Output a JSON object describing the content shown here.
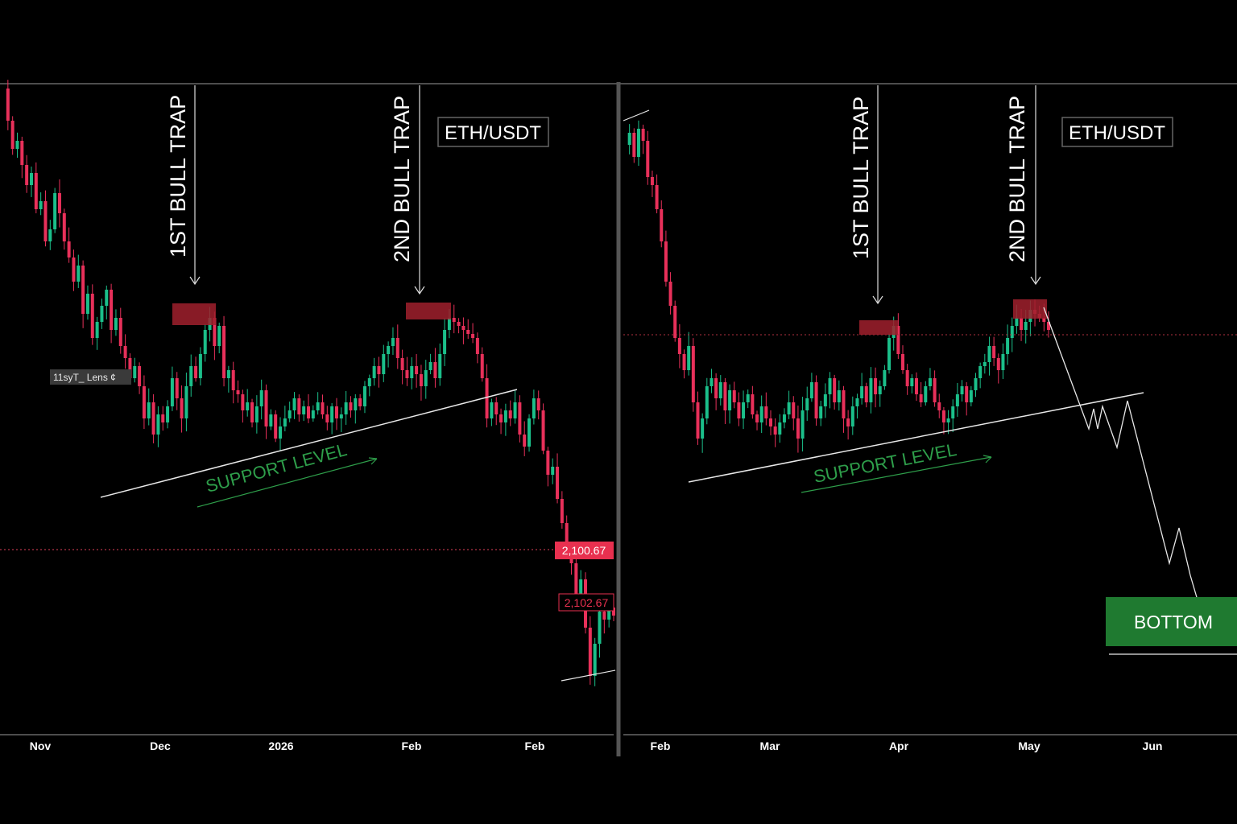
{
  "chart_data": [
    {
      "type": "candlestick",
      "symbol_label": "ETH/USDT",
      "x_ticks": [
        "Nov",
        "Dec",
        "2026",
        "Feb",
        "Feb"
      ],
      "annotations": {
        "trap1": "1ST BULL TRAP",
        "trap2": "2ND BULL TRAP",
        "support": "SUPPORT LEVEL",
        "legend_glitch": "11syT_ Lens ¢"
      },
      "price_tags": [
        "2,100.67",
        "2,102.67"
      ],
      "candles": [
        [
          1,
          [
            170,
            130,
            225,
            125,
            230
          ],
          [
            185,
            192,
            150,
            185,
            120
          ]
        ],
        [
          0,
          [
            200,
            240,
            230,
            260,
            300,
            290
          ],
          [
            215,
            190,
            200,
            235,
            250,
            270,
            320
          ]
        ],
        [
          1,
          [
            280,
            240,
            255,
            345,
            390,
            380
          ],
          [
            270,
            265,
            300,
            360,
            390,
            350,
            340
          ]
        ],
        [
          1,
          [
            350,
            330,
            360,
            380,
            420,
            410
          ],
          [
            340,
            335,
            360,
            390,
            400,
            430,
            440
          ]
        ],
        [
          0,
          [
            430,
            490,
            470,
            500,
            540,
            530
          ],
          [
            455,
            470,
            500,
            520,
            560,
            510,
            500
          ]
        ],
        [
          1,
          [
            520,
            500,
            475,
            490,
            465,
            470
          ],
          [
            505,
            490,
            475,
            470,
            455,
            480,
            490
          ]
        ],
        [
          0,
          [
            485,
            500,
            510,
            505,
            520,
            515
          ],
          [
            495,
            515,
            510,
            520,
            515,
            525,
            530
          ]
        ],
        [
          1,
          [
            510,
            520,
            505,
            515,
            500,
            490
          ],
          [
            505,
            515,
            510,
            500,
            480,
            470,
            440
          ]
        ],
        [
          1,
          [
            440,
            410,
            415,
            460,
            470,
            470
          ],
          [
            420,
            410,
            440,
            470,
            455,
            470,
            440
          ]
        ],
        [
          1,
          [
            440,
            460,
            475,
            470,
            520,
            485
          ],
          [
            450,
            470,
            520,
            500,
            520,
            510,
            495
          ]
        ],
        [
          0,
          [
            410,
            400,
            405,
            400,
            410,
            410
          ],
          [
            410,
            405,
            400,
            410,
            415,
            420,
            450
          ]
        ],
        [
          0,
          [
            450,
            510,
            520,
            515,
            525,
            520
          ],
          [
            520,
            525,
            520,
            560,
            550,
            520,
            525
          ]
        ],
        [
          0,
          [
            515,
            560,
            560,
            600,
            620,
            650
          ],
          [
            500,
            590,
            580,
            640,
            620,
            660,
            680
          ]
        ],
        [
          1,
          [
            670,
            700,
            700,
            700,
            710,
            740
          ],
          [
            700,
            760,
            780,
            800,
            810,
            830,
            835
          ]
        ],
        [
          1,
          [
            770,
            760,
            770,
            760,
            755,
            765
          ],
          [
            760,
            770,
            760,
            755,
            765,
            760,
            760
          ]
        ]
      ],
      "candles2": [
        [
          0,
          [
            180,
            170,
            200,
            160,
            180,
            230
          ],
          [
            175,
            165,
            190,
            215,
            240,
            255,
            280
          ]
        ],
        [
          0,
          [
            300,
            330,
            360,
            420,
            400,
            440
          ],
          [
            340,
            360,
            420,
            440,
            450,
            520,
            540
          ]
        ],
        [
          1,
          [
            520,
            510,
            480,
            490,
            470,
            480
          ],
          [
            500,
            500,
            480,
            490,
            495,
            485,
            520
          ]
        ],
        [
          0,
          [
            520,
            500,
            490,
            510,
            515,
            520
          ],
          [
            510,
            525,
            520,
            530,
            540,
            545,
            530
          ]
        ],
        [
          1,
          [
            530,
            510,
            500,
            495,
            490,
            500
          ],
          [
            505,
            515,
            500,
            520,
            525,
            510,
            500
          ]
        ],
        [
          1,
          [
            490,
            470,
            480,
            470,
            490,
            500
          ],
          [
            495,
            480,
            470,
            480,
            490,
            510,
            520
          ]
        ],
        [
          0,
          [
            520,
            490,
            470,
            480,
            490,
            500
          ],
          [
            480,
            470,
            500,
            490,
            505,
            520,
            525
          ]
        ],
        [
          1,
          [
            520,
            510,
            500,
            480,
            490,
            480
          ],
          [
            500,
            520,
            505,
            490,
            485,
            470,
            440
          ]
        ],
        [
          1,
          [
            410,
            420,
            430,
            440,
            460,
            470
          ],
          [
            420,
            440,
            460,
            470,
            460,
            490,
            500
          ]
        ],
        [
          1,
          [
            500,
            480,
            470,
            490,
            500,
            505
          ],
          [
            490,
            480,
            500,
            505,
            510,
            515,
            520
          ]
        ],
        [
          1,
          [
            520,
            510,
            525,
            500,
            490,
            480
          ],
          [
            500,
            515,
            505,
            490,
            480,
            470,
            460
          ]
        ],
        [
          1,
          [
            460,
            440,
            450,
            460,
            430,
            445
          ],
          [
            440,
            460,
            445,
            430,
            440,
            430,
            410
          ]
        ],
        [
          1,
          [
            400,
            420,
            395,
            405,
            400,
            395
          ],
          [
            410,
            395,
            400,
            395,
            385,
            390,
            380
          ]
        ]
      ]
    },
    {
      "type": "candlestick",
      "symbol_label": "ETH/USDT",
      "x_ticks": [
        "Feb",
        "Mar",
        "Apr",
        "May",
        "Jun"
      ],
      "annotations": {
        "trap1": "1ST BULL TRAP",
        "trap2": "2ND BULL TRAP",
        "support": "SUPPORT LEVEL",
        "bottom": "BOTTOM"
      }
    }
  ]
}
